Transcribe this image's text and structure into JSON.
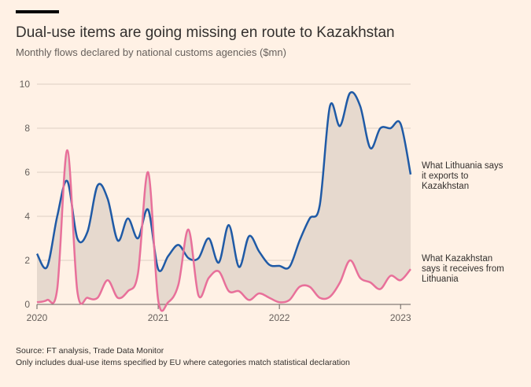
{
  "chart_data": {
    "type": "line",
    "title": "Dual-use items are going missing en route to Kazakhstan",
    "subtitle": "Monthly flows declared by national customs agencies ($mn)",
    "notes": [
      "Source: FT analysis, Trade Data Monitor",
      "Only includes dual-use items specified by EU where categories match statistical declaration"
    ],
    "x": [
      2020,
      2020.083,
      2020.167,
      2020.25,
      2020.333,
      2020.417,
      2020.5,
      2020.583,
      2020.667,
      2020.75,
      2020.833,
      2020.917,
      2021,
      2021.083,
      2021.167,
      2021.25,
      2021.333,
      2021.417,
      2021.5,
      2021.583,
      2021.667,
      2021.75,
      2021.833,
      2021.917,
      2022,
      2022.083,
      2022.167,
      2022.25,
      2022.333,
      2022.417,
      2022.5,
      2022.583,
      2022.667,
      2022.75,
      2022.833,
      2022.917,
      2023,
      2023.083
    ],
    "series": [
      {
        "name": "What Lithuania says it exports to Kazakhstan",
        "color": "#1f5aa6",
        "values": [
          2.3,
          1.7,
          4.0,
          5.6,
          3.0,
          3.3,
          5.4,
          4.8,
          2.9,
          3.9,
          3.0,
          4.3,
          1.6,
          2.2,
          2.7,
          2.1,
          2.1,
          3.0,
          1.9,
          3.6,
          1.7,
          3.1,
          2.4,
          1.8,
          1.75,
          1.7,
          2.9,
          3.9,
          4.5,
          9.0,
          8.1,
          9.6,
          9.0,
          7.1,
          8.0,
          8.0,
          8.2,
          5.9
        ]
      },
      {
        "name": "What Kazakhstan says it receives from Lithuania",
        "color": "#e8709a",
        "values": [
          0.1,
          0.2,
          0.7,
          7.0,
          0.6,
          0.3,
          0.3,
          1.1,
          0.3,
          0.6,
          1.4,
          6.0,
          0.2,
          0.1,
          0.9,
          3.4,
          0.4,
          1.2,
          1.5,
          0.6,
          0.6,
          0.2,
          0.5,
          0.3,
          0.1,
          0.2,
          0.8,
          0.8,
          0.3,
          0.35,
          1.0,
          2.0,
          1.2,
          1.0,
          0.7,
          1.3,
          1.1,
          1.6
        ]
      }
    ],
    "xlim": [
      2020,
      2023.083
    ],
    "xticks": [
      2020,
      2021,
      2022,
      2023
    ],
    "ylim": [
      0,
      10
    ],
    "yticks": [
      0,
      2,
      4,
      6,
      8,
      10
    ],
    "grid": true,
    "fill_between": "#e6d9ce"
  }
}
